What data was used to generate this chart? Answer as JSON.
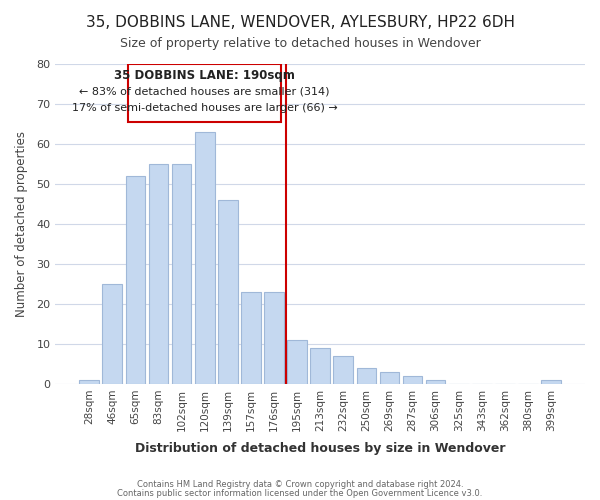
{
  "title": "35, DOBBINS LANE, WENDOVER, AYLESBURY, HP22 6DH",
  "subtitle": "Size of property relative to detached houses in Wendover",
  "xlabel": "Distribution of detached houses by size in Wendover",
  "ylabel": "Number of detached properties",
  "bar_labels": [
    "28sqm",
    "46sqm",
    "65sqm",
    "83sqm",
    "102sqm",
    "120sqm",
    "139sqm",
    "157sqm",
    "176sqm",
    "195sqm",
    "213sqm",
    "232sqm",
    "250sqm",
    "269sqm",
    "287sqm",
    "306sqm",
    "325sqm",
    "343sqm",
    "362sqm",
    "380sqm",
    "399sqm"
  ],
  "bar_values": [
    1,
    25,
    52,
    55,
    55,
    63,
    46,
    23,
    23,
    11,
    9,
    7,
    4,
    3,
    2,
    1,
    0,
    0,
    0,
    0,
    1
  ],
  "bar_color": "#c5d8f0",
  "bar_edge_color": "#a0b8d8",
  "vline_x": 8.5,
  "vline_color": "#cc0000",
  "annotation_title": "35 DOBBINS LANE: 190sqm",
  "annotation_line1": "← 83% of detached houses are smaller (314)",
  "annotation_line2": "17% of semi-detached houses are larger (66) →",
  "annotation_box_color": "#ffffff",
  "annotation_box_edge": "#cc0000",
  "ylim": [
    0,
    80
  ],
  "yticks": [
    0,
    10,
    20,
    30,
    40,
    50,
    60,
    70,
    80
  ],
  "footer1": "Contains HM Land Registry data © Crown copyright and database right 2024.",
  "footer2": "Contains public sector information licensed under the Open Government Licence v3.0.",
  "background_color": "#ffffff",
  "grid_color": "#d0d8e8"
}
